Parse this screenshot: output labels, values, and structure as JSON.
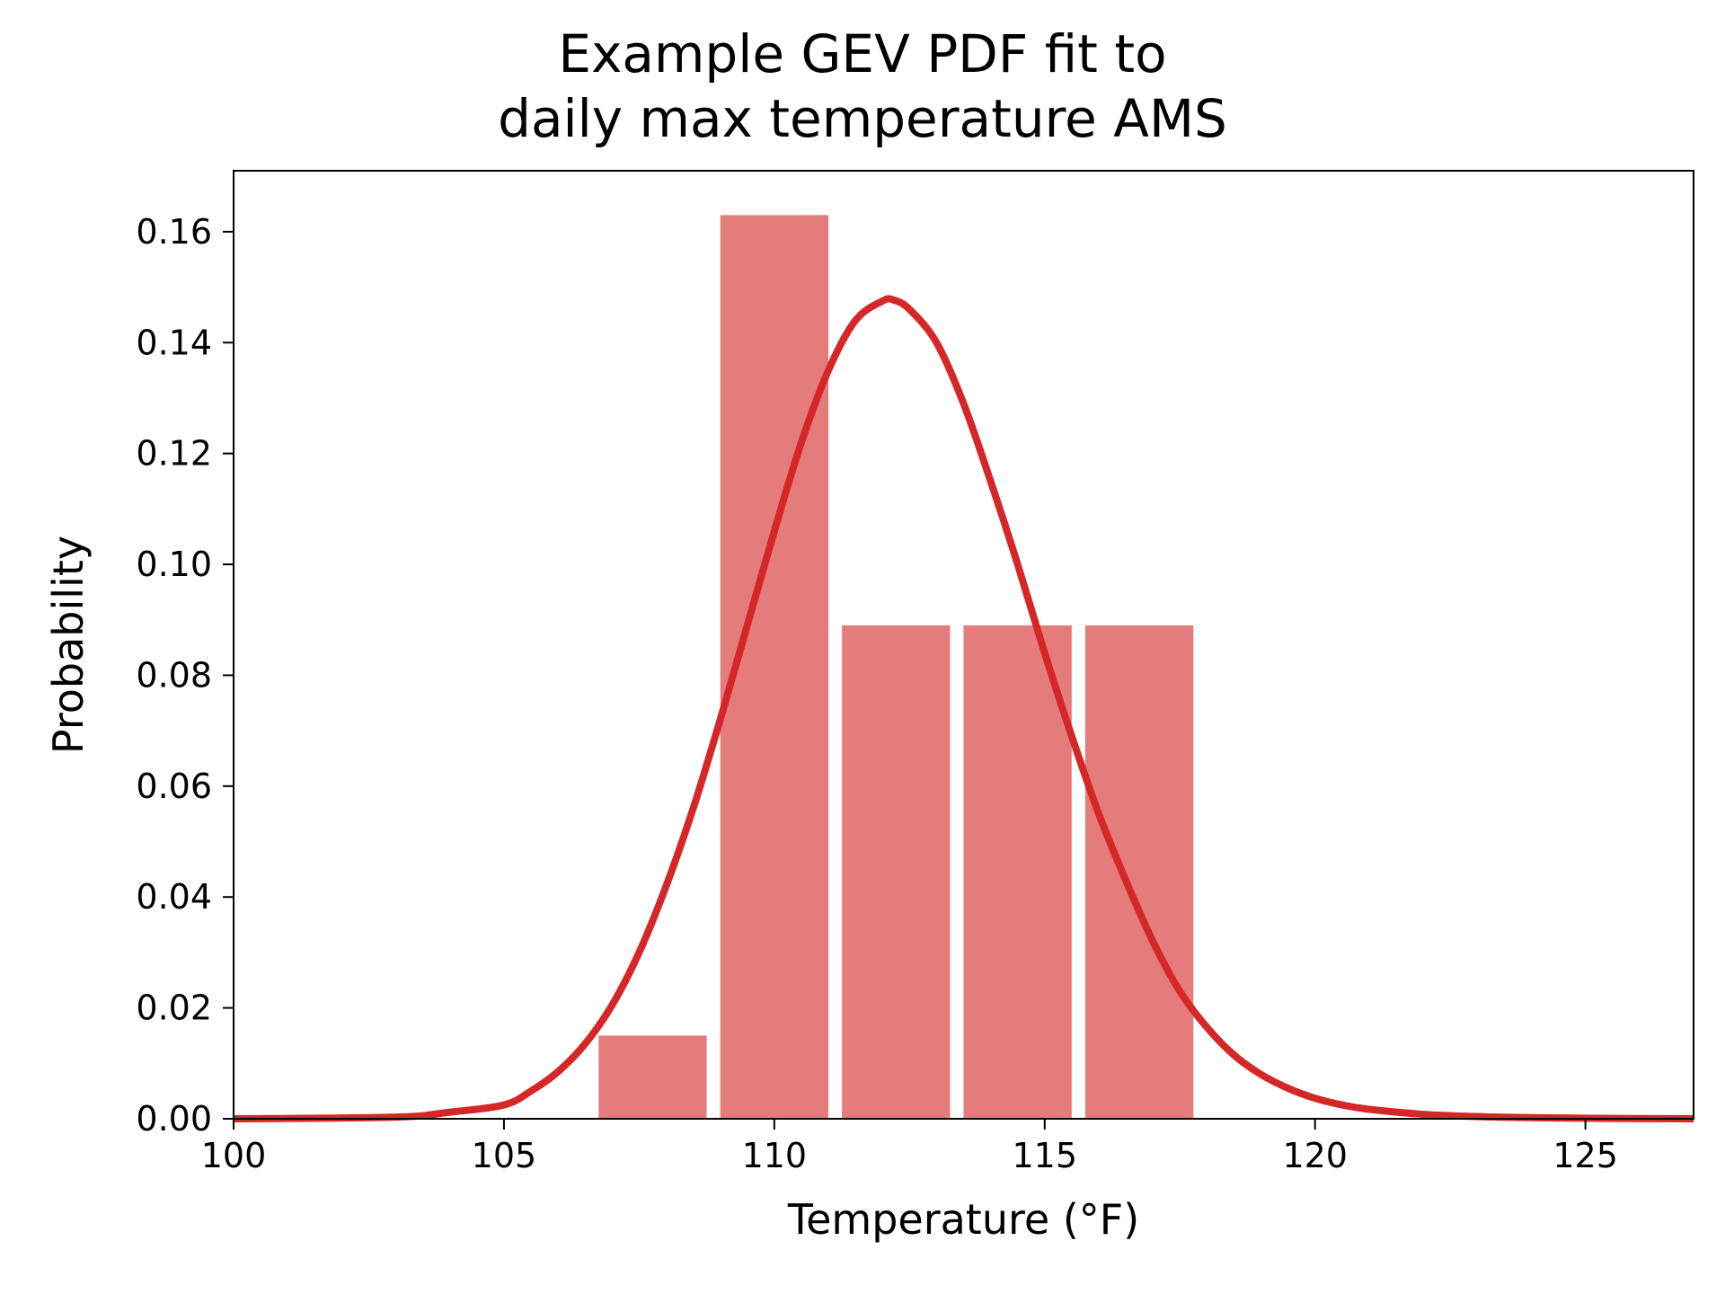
{
  "chart_data": {
    "type": "bar",
    "title": [
      "Example GEV PDF fit to",
      "daily max temperature AMS"
    ],
    "xlabel": "Temperature (°F)",
    "ylabel": "Probability",
    "xlim": [
      100,
      127
    ],
    "ylim": [
      0,
      0.171
    ],
    "xticks": [
      100,
      105,
      110,
      115,
      120,
      125
    ],
    "xtick_labels": [
      "100",
      "105",
      "110",
      "115",
      "120",
      "125"
    ],
    "yticks": [
      0,
      0.02,
      0.04,
      0.06,
      0.08,
      0.1,
      0.12,
      0.14,
      0.16
    ],
    "ytick_labels": [
      "0.00",
      "0.02",
      "0.04",
      "0.06",
      "0.08",
      "0.10",
      "0.12",
      "0.14",
      "0.16"
    ],
    "grid": false,
    "histogram": {
      "color": "#e57c7c",
      "bins": [
        {
          "left": 106.75,
          "right": 108.75,
          "value": 0.015
        },
        {
          "left": 109.0,
          "right": 111.0,
          "value": 0.163
        },
        {
          "left": 111.25,
          "right": 113.25,
          "value": 0.089
        },
        {
          "left": 113.5,
          "right": 115.5,
          "value": 0.089
        },
        {
          "left": 115.75,
          "right": 117.75,
          "value": 0.089
        }
      ]
    },
    "curve": {
      "type": "line",
      "color": "#d62728",
      "x": [
        100,
        103,
        104,
        105,
        105.5,
        106,
        106.5,
        107,
        107.5,
        108,
        108.5,
        109,
        109.5,
        110,
        110.5,
        111,
        111.5,
        112,
        112.2,
        112.5,
        113,
        113.5,
        114,
        114.5,
        115,
        115.5,
        116,
        116.5,
        117,
        117.5,
        118,
        118.5,
        119,
        119.5,
        120,
        120.5,
        121,
        122,
        123,
        124,
        125,
        127
      ],
      "y": [
        0.0,
        0.0003,
        0.0012,
        0.0025,
        0.005,
        0.0085,
        0.0135,
        0.0205,
        0.03,
        0.042,
        0.056,
        0.072,
        0.089,
        0.106,
        0.122,
        0.135,
        0.144,
        0.1475,
        0.1477,
        0.146,
        0.14,
        0.129,
        0.115,
        0.1,
        0.084,
        0.069,
        0.055,
        0.043,
        0.032,
        0.023,
        0.0165,
        0.0115,
        0.008,
        0.0055,
        0.0037,
        0.0025,
        0.0017,
        0.0008,
        0.0004,
        0.0002,
        0.0001,
        0.0
      ]
    }
  }
}
